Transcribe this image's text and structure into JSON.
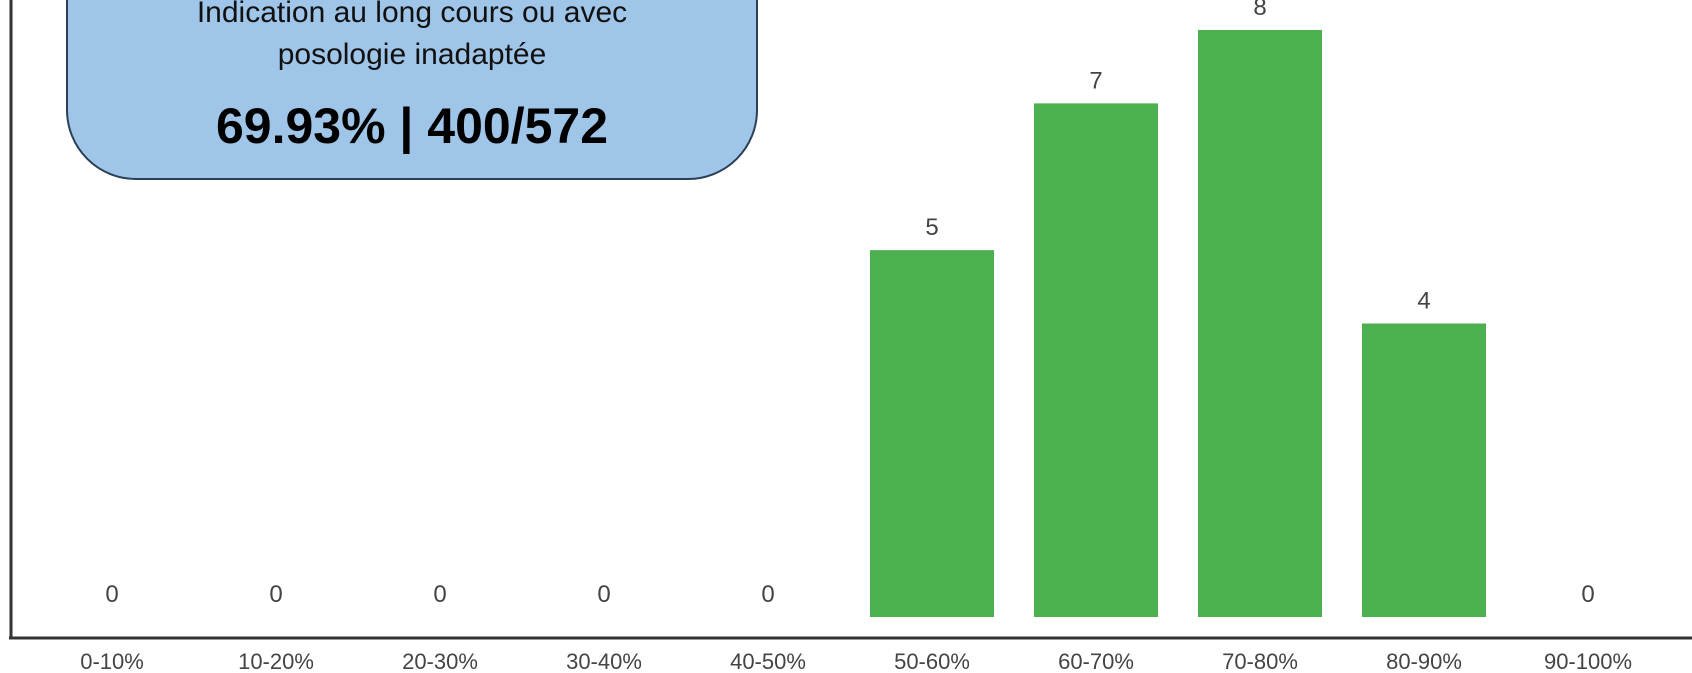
{
  "chart_data": {
    "type": "bar",
    "categories": [
      "0-10%",
      "10-20%",
      "20-30%",
      "30-40%",
      "40-50%",
      "50-60%",
      "60-70%",
      "70-80%",
      "80-90%",
      "90-100%"
    ],
    "values": [
      0,
      0,
      0,
      0,
      0,
      5,
      7,
      8,
      4,
      0
    ],
    "ylim": [
      0,
      8
    ],
    "bar_color": "#4caf50",
    "axis_color": "#333333",
    "grid": false,
    "legend": "none"
  },
  "callout": {
    "line1": "Indication au long cours ou avec",
    "line2": "posologie inadaptée",
    "stat": "69.93% | 400/572",
    "background": "#9fc5e8"
  }
}
